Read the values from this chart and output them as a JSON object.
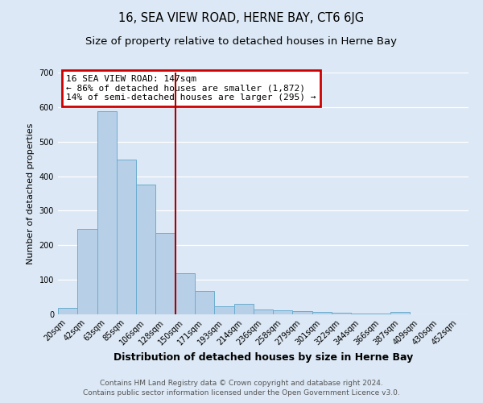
{
  "title": "16, SEA VIEW ROAD, HERNE BAY, CT6 6JG",
  "subtitle": "Size of property relative to detached houses in Herne Bay",
  "xlabel": "Distribution of detached houses by size in Herne Bay",
  "ylabel": "Number of detached properties",
  "bar_labels": [
    "20sqm",
    "42sqm",
    "63sqm",
    "85sqm",
    "106sqm",
    "128sqm",
    "150sqm",
    "171sqm",
    "193sqm",
    "214sqm",
    "236sqm",
    "258sqm",
    "279sqm",
    "301sqm",
    "322sqm",
    "344sqm",
    "366sqm",
    "387sqm",
    "409sqm",
    "430sqm",
    "452sqm"
  ],
  "bar_values": [
    18,
    248,
    588,
    449,
    376,
    236,
    120,
    67,
    23,
    30,
    13,
    11,
    9,
    7,
    4,
    2,
    2,
    7,
    1,
    0,
    1
  ],
  "bar_color": "#b8cfe8",
  "bar_edge_color": "#6aadcf",
  "vline_x_index": 6,
  "vline_color": "#aa0000",
  "annotation_title": "16 SEA VIEW ROAD: 147sqm",
  "annotation_line1": "← 86% of detached houses are smaller (1,872)",
  "annotation_line2": "14% of semi-detached houses are larger (295) →",
  "annotation_box_edgecolor": "#cc0000",
  "ylim": [
    0,
    700
  ],
  "yticks": [
    0,
    100,
    200,
    300,
    400,
    500,
    600,
    700
  ],
  "footer1": "Contains HM Land Registry data © Crown copyright and database right 2024.",
  "footer2": "Contains public sector information licensed under the Open Government Licence v3.0.",
  "background_color": "#dce8f5",
  "plot_bg_color": "#dce8f5",
  "grid_color": "#ffffff",
  "title_fontsize": 10.5,
  "subtitle_fontsize": 9.5,
  "xlabel_fontsize": 9,
  "ylabel_fontsize": 8,
  "tick_fontsize": 7,
  "annotation_fontsize": 8,
  "footer_fontsize": 6.5
}
